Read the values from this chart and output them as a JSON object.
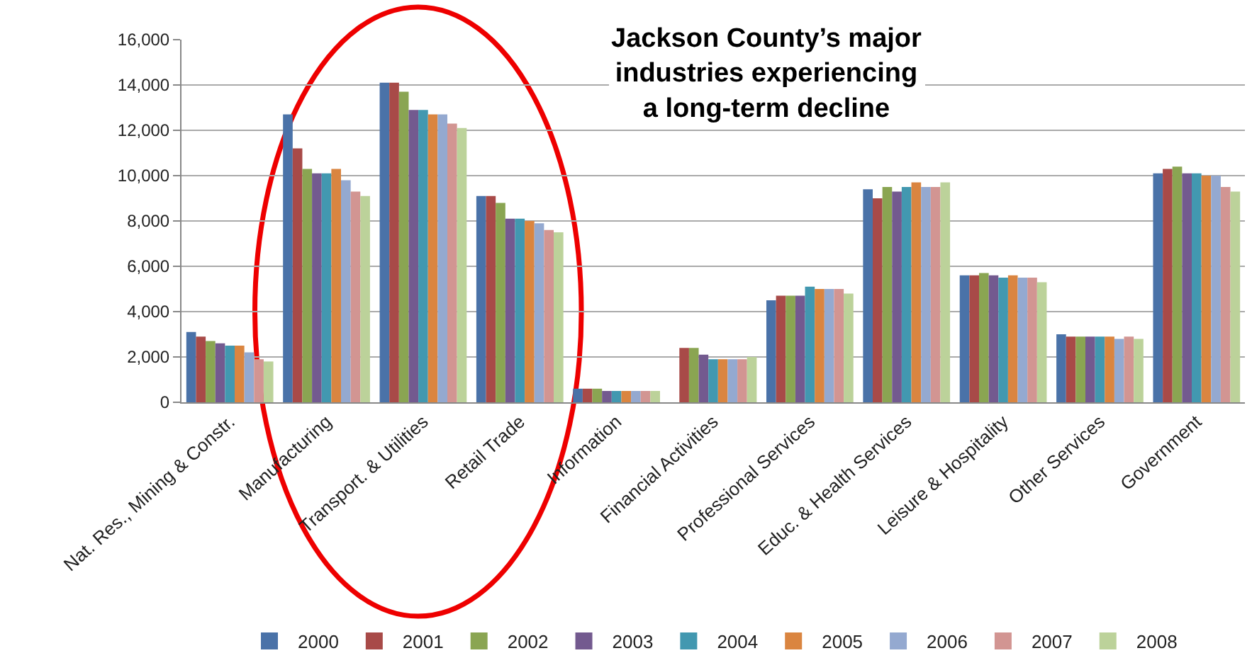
{
  "chart_data": {
    "type": "bar",
    "title": "Jackson County’s major industries experiencing a long-term decline",
    "categories": [
      "Nat. Res., Mining & Constr.",
      "Manufacturing",
      "Transport. & Utilities",
      "Retail Trade",
      "Information",
      "Financial Activities",
      "Professional Services",
      "Educ. & Health Services",
      "Leisure & Hospitality",
      "Other Services",
      "Government"
    ],
    "series": [
      {
        "name": "2000",
        "color": "#4a72a8",
        "values": [
          3100,
          12700,
          14100,
          9100,
          600,
          null,
          4500,
          9400,
          5600,
          3000,
          10100
        ]
      },
      {
        "name": "2001",
        "color": "#a84a48",
        "values": [
          2900,
          11200,
          14100,
          9100,
          600,
          2400,
          4700,
          9000,
          5600,
          2900,
          10300
        ]
      },
      {
        "name": "2002",
        "color": "#8aa552",
        "values": [
          2700,
          10300,
          13700,
          8800,
          600,
          2400,
          4700,
          9500,
          5700,
          2900,
          10400
        ]
      },
      {
        "name": "2003",
        "color": "#735a8f",
        "values": [
          2600,
          10100,
          12900,
          8100,
          500,
          2100,
          4700,
          9300,
          5600,
          2900,
          10100
        ]
      },
      {
        "name": "2004",
        "color": "#4298b0",
        "values": [
          2500,
          10100,
          12900,
          8100,
          500,
          1900,
          5100,
          9500,
          5500,
          2900,
          10100
        ]
      },
      {
        "name": "2005",
        "color": "#da8540",
        "values": [
          2500,
          10300,
          12700,
          8000,
          500,
          1900,
          5000,
          9700,
          5600,
          2900,
          10000
        ]
      },
      {
        "name": "2006",
        "color": "#94a9d0",
        "values": [
          2200,
          9800,
          12700,
          7900,
          500,
          1900,
          5000,
          9500,
          5500,
          2800,
          10000
        ]
      },
      {
        "name": "2007",
        "color": "#d29592",
        "values": [
          1900,
          9300,
          12300,
          7600,
          500,
          1900,
          5000,
          9500,
          5500,
          2900,
          9500
        ]
      },
      {
        "name": "2008",
        "color": "#bcd29a",
        "values": [
          1800,
          9100,
          12100,
          7500,
          500,
          2000,
          4800,
          9700,
          5300,
          2800,
          9300
        ]
      }
    ],
    "ylim": [
      0,
      16000
    ],
    "yticks": [
      {
        "value": 0,
        "label": "0"
      },
      {
        "value": 2000,
        "label": "2,000"
      },
      {
        "value": 4000,
        "label": "4,000"
      },
      {
        "value": 6000,
        "label": "6,000"
      },
      {
        "value": 8000,
        "label": "8,000"
      },
      {
        "value": 10000,
        "label": "10,000"
      },
      {
        "value": 12000,
        "label": "12,000"
      },
      {
        "value": 14000,
        "label": "14,000"
      },
      {
        "value": 16000,
        "label": "16,000"
      }
    ],
    "grid": "y",
    "legend": "bottom"
  }
}
